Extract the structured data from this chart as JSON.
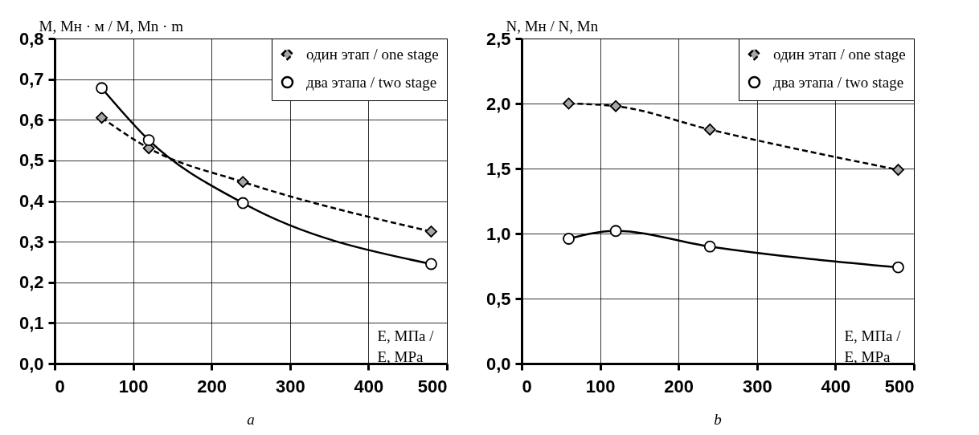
{
  "chart_data": [
    {
      "type": "line",
      "title": "a",
      "ylabel": "M, Мн · м / M, Mn · m",
      "xlabel": "E, МПа / E, MPa",
      "x": [
        60,
        120,
        240,
        480
      ],
      "series": [
        {
          "name": "один этап / one stage",
          "color": "#000000",
          "marker": "diamond",
          "line_style": "dashed",
          "values": [
            0.605,
            0.53,
            0.447,
            0.325
          ]
        },
        {
          "name": "два этапа / two stage",
          "color": "#000000",
          "marker": "circle",
          "line_style": "solid",
          "values": [
            0.678,
            0.55,
            0.395,
            0.245
          ]
        }
      ],
      "xlim": [
        0,
        500
      ],
      "xticks": [
        0,
        100,
        200,
        300,
        400,
        500
      ],
      "ylim": [
        0,
        0.8
      ],
      "yticks": [
        {
          "value": 0,
          "label": "0,0"
        },
        {
          "value": 0.1,
          "label": "0,1"
        },
        {
          "value": 0.2,
          "label": "0,2"
        },
        {
          "value": 0.3,
          "label": "0,3"
        },
        {
          "value": 0.4,
          "label": "0,4"
        },
        {
          "value": 0.5,
          "label": "0,5"
        },
        {
          "value": 0.6,
          "label": "0,6"
        },
        {
          "value": 0.7,
          "label": "0,7"
        },
        {
          "value": 0.8,
          "label": "0,8"
        }
      ],
      "grid": true,
      "legend": "top right"
    },
    {
      "type": "line",
      "title": "b",
      "ylabel": "N, Мн / N, Mn",
      "xlabel": "E, МПа / E, MPa",
      "x": [
        60,
        120,
        240,
        480
      ],
      "series": [
        {
          "name": "один этап / one stage",
          "color": "#000000",
          "marker": "diamond",
          "line_style": "dashed",
          "values": [
            2.0,
            1.98,
            1.8,
            1.49
          ]
        },
        {
          "name": "два этапа / two stage",
          "color": "#000000",
          "marker": "circle",
          "line_style": "solid",
          "values": [
            0.96,
            1.02,
            0.9,
            0.74
          ]
        }
      ],
      "xlim": [
        0,
        500
      ],
      "xticks": [
        0,
        100,
        200,
        300,
        400,
        500
      ],
      "ylim": [
        0,
        2.5
      ],
      "yticks": [
        {
          "value": 0,
          "label": "0,0"
        },
        {
          "value": 0.5,
          "label": "0,5"
        },
        {
          "value": 1.0,
          "label": "1,0"
        },
        {
          "value": 1.5,
          "label": "1,5"
        },
        {
          "value": 2.0,
          "label": "2,0"
        },
        {
          "value": 2.5,
          "label": "2,5"
        }
      ],
      "grid": true,
      "legend": "top right"
    }
  ]
}
